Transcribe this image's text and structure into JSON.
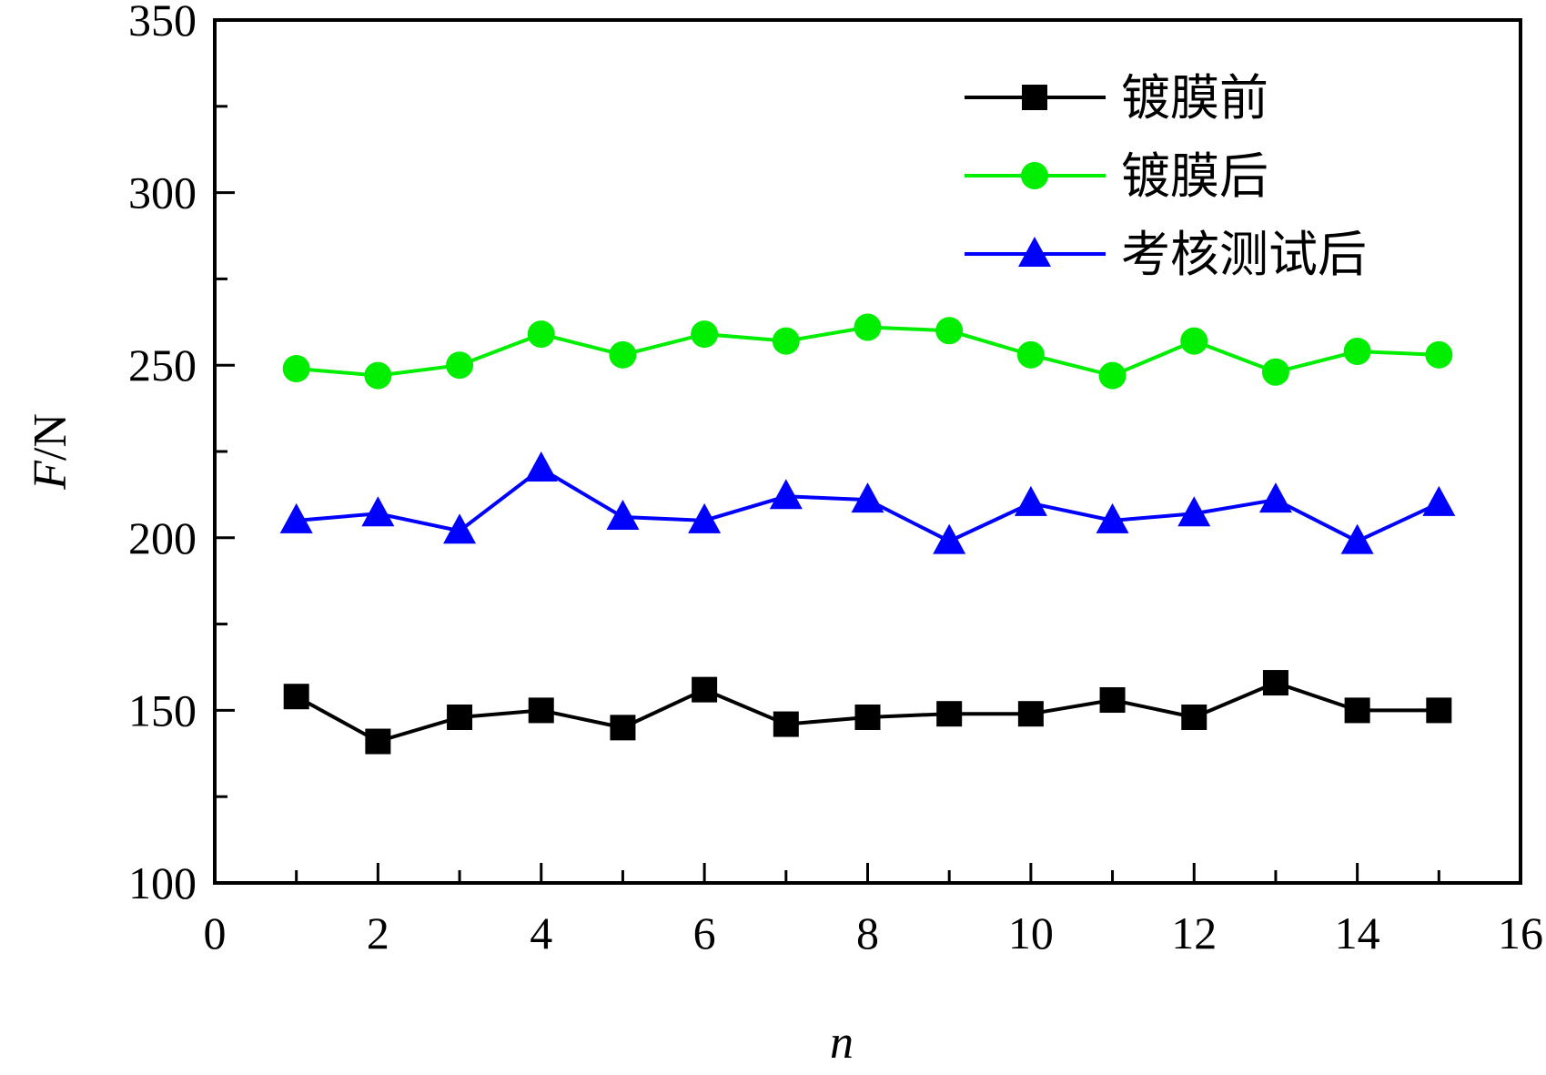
{
  "chart_data": {
    "type": "line",
    "xlabel": "n",
    "ylabel_italic": "F",
    "ylabel_unit": "/N",
    "xlim": [
      0,
      16
    ],
    "ylim": [
      100,
      350
    ],
    "x_ticks": [
      0,
      2,
      4,
      6,
      8,
      10,
      12,
      14,
      16
    ],
    "y_ticks": [
      100,
      150,
      200,
      250,
      300,
      350
    ],
    "legend_position": "top-right",
    "grid": false,
    "x": [
      1,
      2,
      3,
      4,
      5,
      6,
      7,
      8,
      9,
      10,
      11,
      12,
      13,
      14,
      15
    ],
    "series": [
      {
        "name": "镀膜前",
        "color": "#000000",
        "marker": "square",
        "values": [
          154,
          141,
          148,
          150,
          145,
          156,
          146,
          148,
          149,
          149,
          153,
          148,
          158,
          150,
          150
        ]
      },
      {
        "name": "镀膜后",
        "color": "#00ee00",
        "marker": "circle",
        "values": [
          249,
          247,
          250,
          259,
          253,
          259,
          257,
          261,
          260,
          253,
          247,
          257,
          248,
          254,
          253
        ]
      },
      {
        "name": "考核测试后",
        "color": "#0000ff",
        "marker": "triangle",
        "values": [
          205,
          207,
          202,
          220,
          206,
          205,
          212,
          211,
          199,
          210,
          205,
          207,
          211,
          199,
          210
        ]
      }
    ]
  }
}
